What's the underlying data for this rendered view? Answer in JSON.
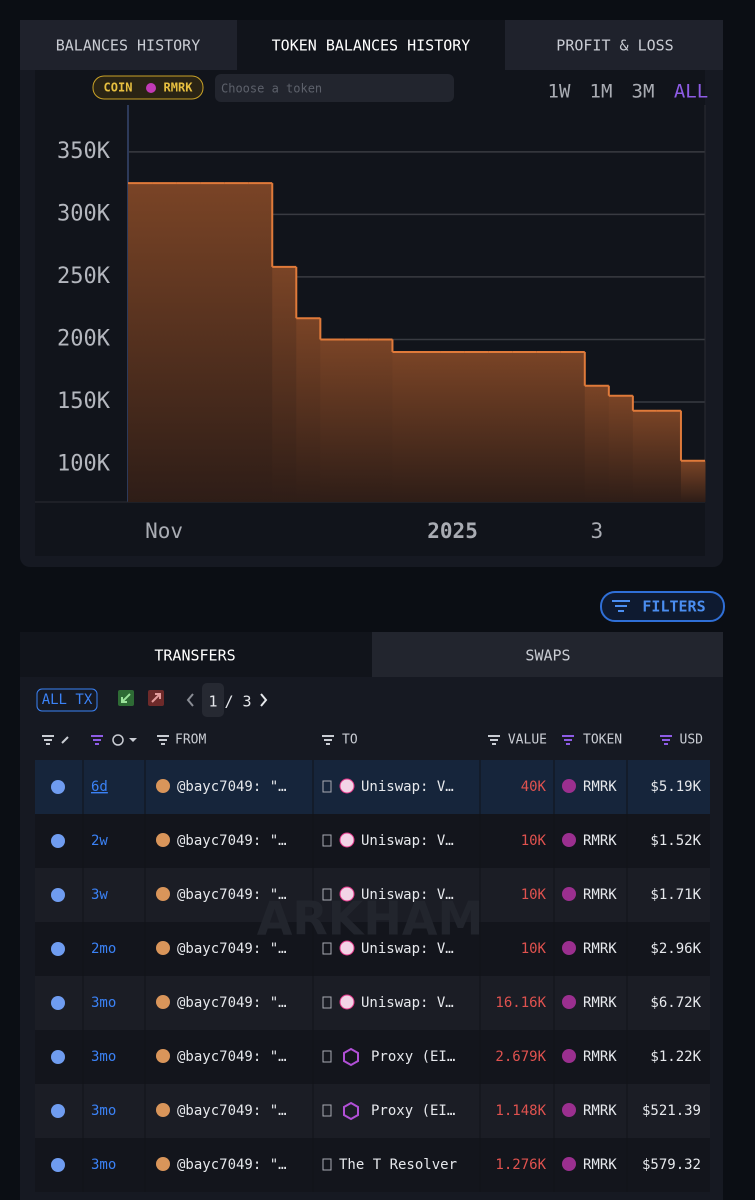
{
  "tabs": [
    "BALANCES HISTORY",
    "TOKEN BALANCES HISTORY",
    "PROFIT & LOSS"
  ],
  "token_chip": {
    "left": "COIN",
    "right": "RMRK"
  },
  "token_search_placeholder": "Choose a token",
  "ranges": [
    "1W",
    "1M",
    "3M",
    "ALL"
  ],
  "chart": {
    "type": "area",
    "color": "#e07a3a",
    "grid": true,
    "categories": [
      null,
      "Nov",
      null,
      null,
      null,
      null,
      null,
      null,
      null,
      null,
      null,
      null,
      null,
      "2025",
      null,
      null,
      null,
      null,
      null,
      "3",
      null,
      null,
      null,
      null
    ],
    "values": [
      325000,
      325000,
      325000,
      325000,
      325000,
      325000,
      258000,
      217000,
      200000,
      200000,
      200000,
      190000,
      190000,
      190000,
      190000,
      190000,
      190000,
      190000,
      190000,
      163000,
      155000,
      143000,
      143000,
      103000
    ],
    "ylim": [
      70000,
      387500
    ],
    "yticks": [
      {
        "value": 100000,
        "label": "100K"
      },
      {
        "value": 150000,
        "label": "150K"
      },
      {
        "value": 200000,
        "label": "200K"
      },
      {
        "value": 250000,
        "label": "250K"
      },
      {
        "value": 300000,
        "label": "300K"
      },
      {
        "value": 350000,
        "label": "350K"
      }
    ]
  },
  "filters_button": "FILTERS",
  "table_tabs": [
    "TRANSFERS",
    "SWAPS"
  ],
  "toolbar": {
    "all_tx": "ALL TX",
    "page": "1",
    "pages": "/ 3"
  },
  "table": {
    "headers": [
      "FROM",
      "TO",
      "VALUE",
      "TOKEN",
      "USD"
    ],
    "rows": [
      [
        "6d",
        "@bayc7049: \"…",
        "Uniswap: V…",
        "40K",
        "RMRK",
        "$5.19K"
      ],
      [
        "2w",
        "@bayc7049: \"…",
        "Uniswap: V…",
        "10K",
        "RMRK",
        "$1.52K"
      ],
      [
        "3w",
        "@bayc7049: \"…",
        "Uniswap: V…",
        "10K",
        "RMRK",
        "$1.71K"
      ],
      [
        "2mo",
        "@bayc7049: \"…",
        "Uniswap: V…",
        "10K",
        "RMRK",
        "$2.96K"
      ],
      [
        "3mo",
        "@bayc7049: \"…",
        "Uniswap: V…",
        "16.16K",
        "RMRK",
        "$6.72K"
      ],
      [
        "3mo",
        "@bayc7049: \"…",
        "Proxy (EI…",
        "2.679K",
        "RMRK",
        "$1.22K"
      ],
      [
        "3mo",
        "@bayc7049: \"…",
        "Proxy (EI…",
        "1.148K",
        "RMRK",
        "$521.39"
      ],
      [
        "3mo",
        "@bayc7049: \"…",
        "The T Resolver",
        "1.276K",
        "RMRK",
        "$579.32"
      ]
    ]
  },
  "watermark": "ARKHAM"
}
